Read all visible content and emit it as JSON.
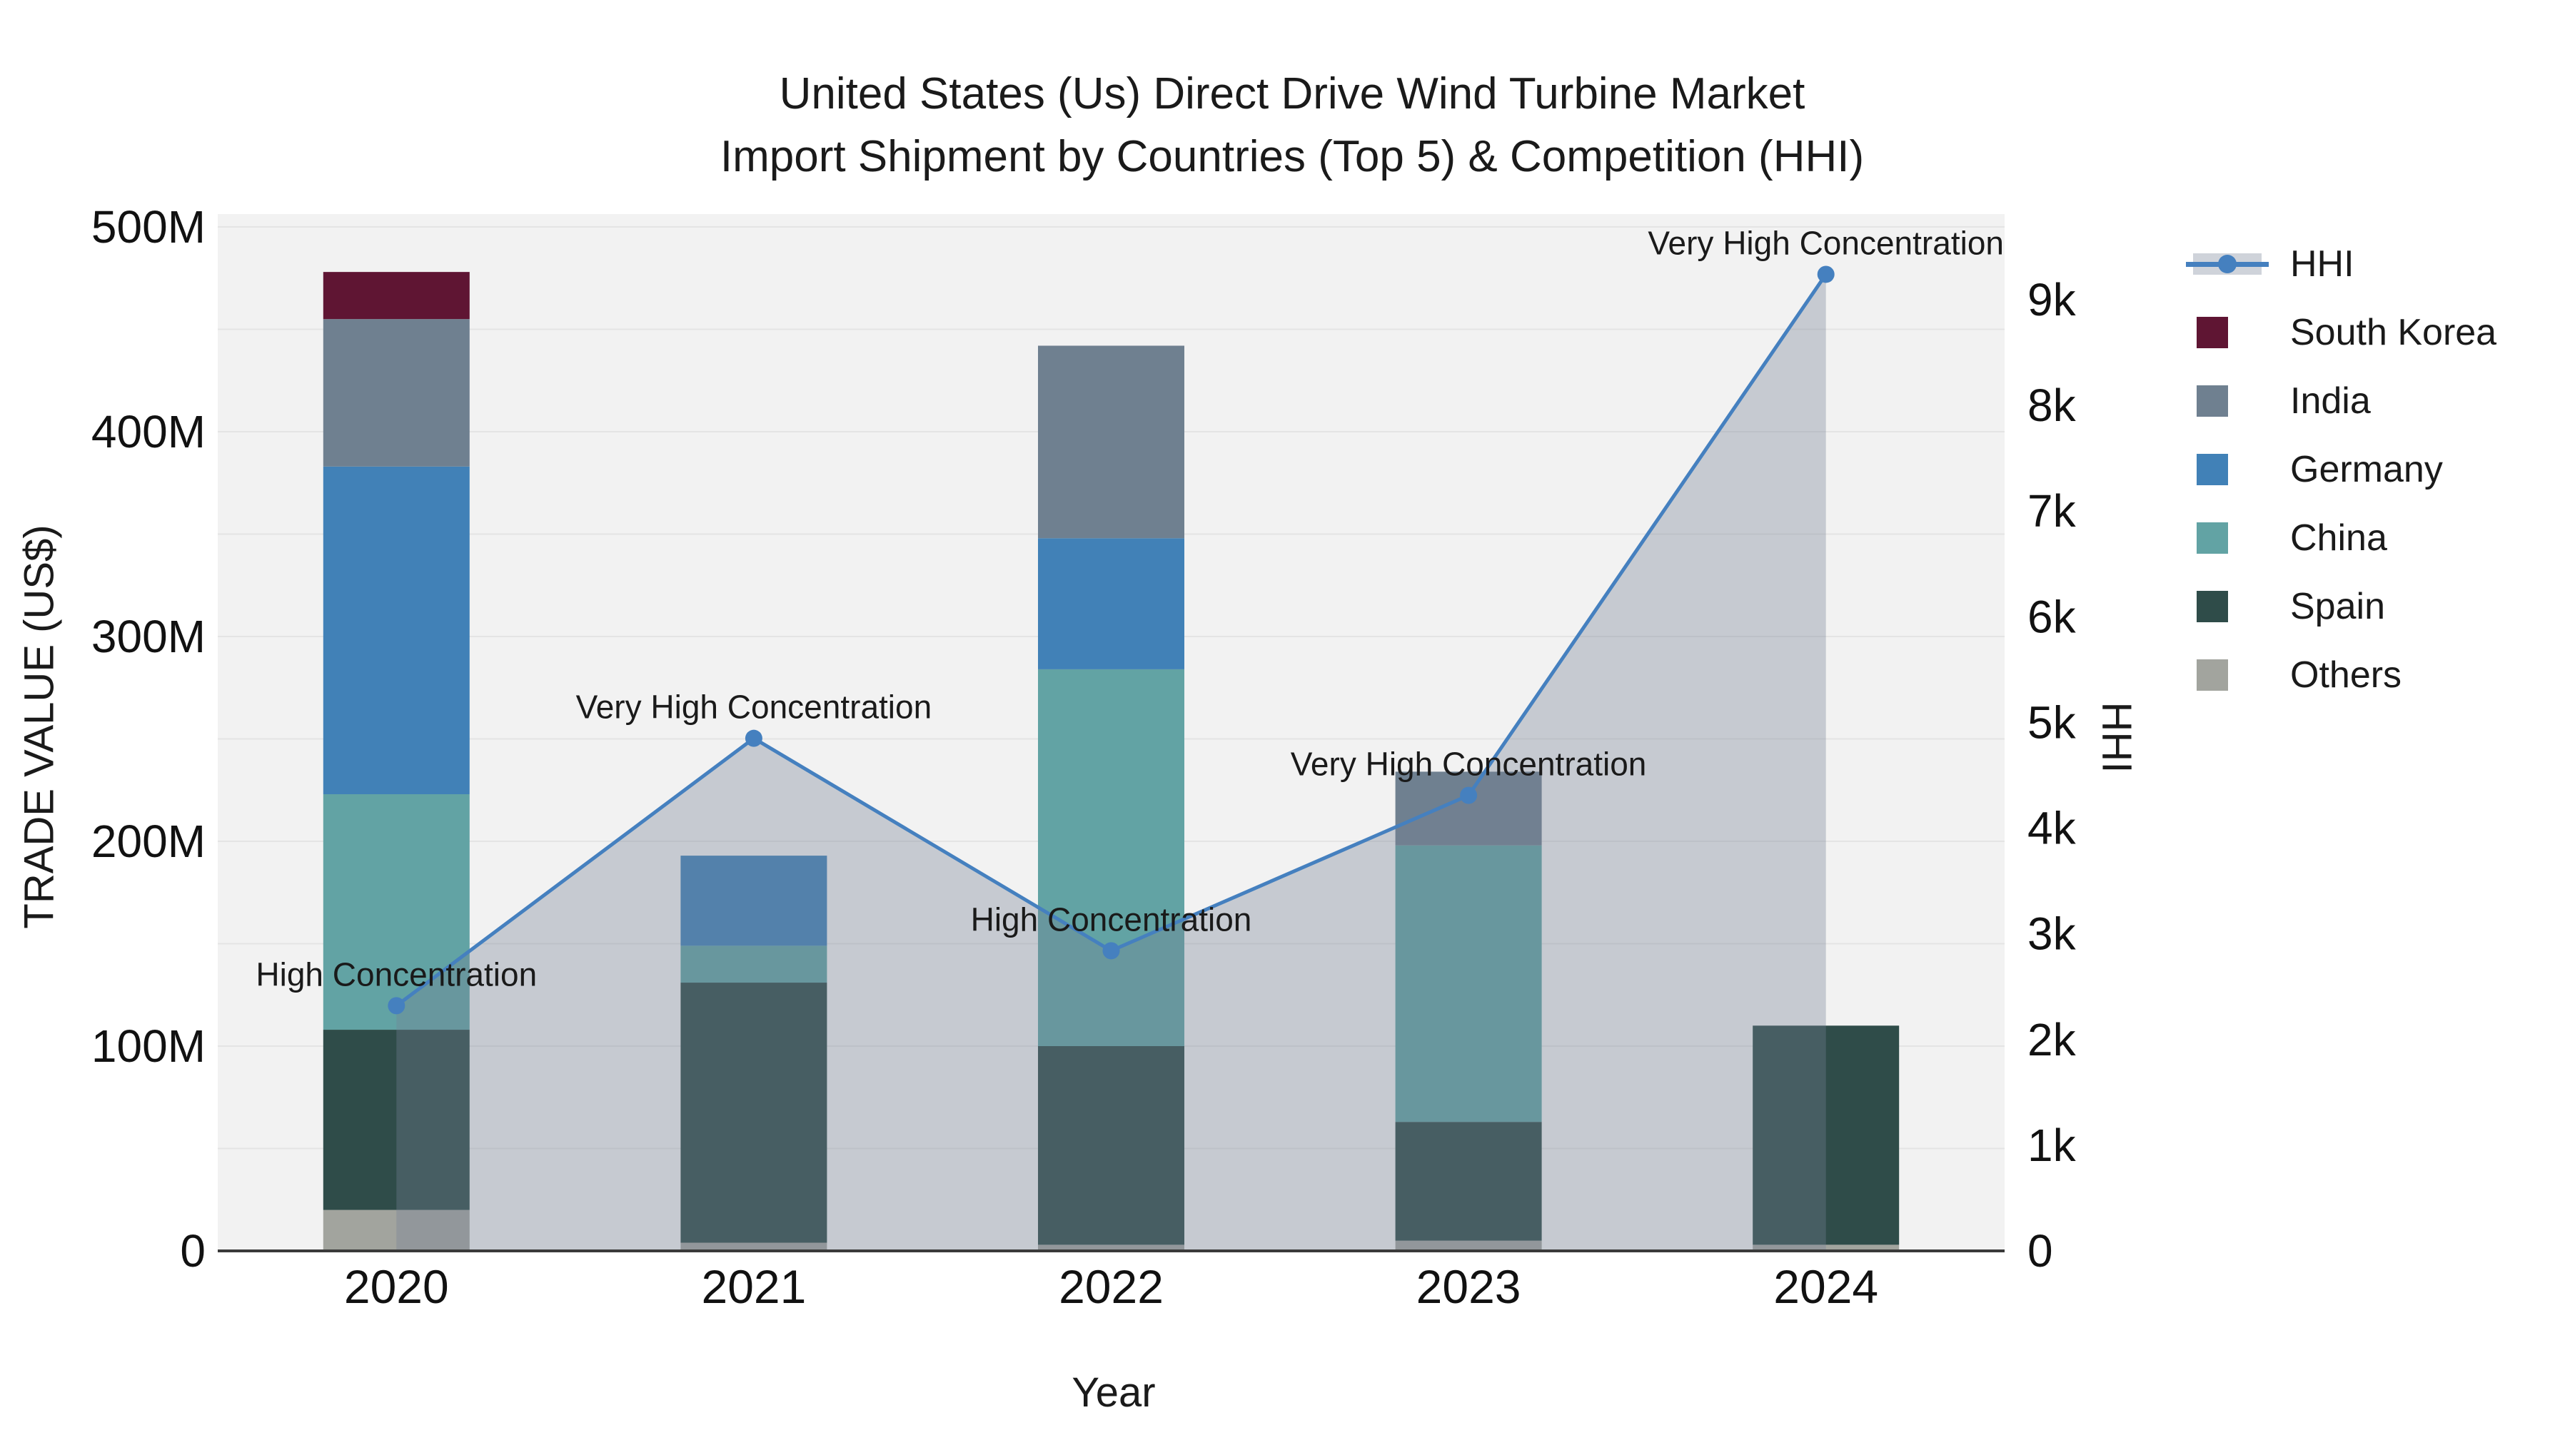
{
  "title": {
    "line1": "United States (Us) Direct Drive Wind Turbine Market",
    "line2": "Import Shipment by Countries (Top 5) & Competition (HHI)"
  },
  "axes": {
    "x": {
      "title": "Year"
    },
    "y_left": {
      "title": "TRADE VALUE (US$)",
      "tick_labels": [
        "0",
        "100M",
        "200M",
        "300M",
        "400M",
        "500M"
      ],
      "range_millions": [
        0,
        500
      ]
    },
    "y_right": {
      "title": "HHI",
      "tick_labels": [
        "0",
        "1k",
        "2k",
        "3k",
        "4k",
        "5k",
        "6k",
        "7k",
        "8k",
        "9k"
      ],
      "range": [
        0,
        9000
      ]
    }
  },
  "legend": {
    "items": [
      {
        "label": "HHI",
        "type": "line",
        "color": "#4580bf",
        "band_color": "rgba(118,130,150,0.35)"
      },
      {
        "label": "South Korea",
        "type": "square",
        "color": "#5f1533"
      },
      {
        "label": "India",
        "type": "square",
        "color": "#6f8090"
      },
      {
        "label": "Germany",
        "type": "square",
        "color": "#4181b7"
      },
      {
        "label": "China",
        "type": "square",
        "color": "#62a3a4"
      },
      {
        "label": "Spain",
        "type": "square",
        "color": "#2f4c49"
      },
      {
        "label": "Others",
        "type": "square",
        "color": "#a2a49e"
      }
    ]
  },
  "chart_data": {
    "type": "bar+line",
    "categories": [
      "2020",
      "2021",
      "2022",
      "2023",
      "2024"
    ],
    "bar_value_unit": "millions of US$",
    "stack_order_bottom_to_top": [
      "Others",
      "Spain",
      "China",
      "Germany",
      "India",
      "South Korea"
    ],
    "series": [
      {
        "name": "South Korea",
        "color": "#5f1533",
        "values_millions": [
          23,
          0,
          0,
          0,
          0
        ]
      },
      {
        "name": "India",
        "color": "#6f8090",
        "values_millions": [
          72,
          0,
          94,
          36,
          0
        ]
      },
      {
        "name": "Germany",
        "color": "#4181b7",
        "values_millions": [
          160,
          44,
          64,
          0,
          0
        ]
      },
      {
        "name": "China",
        "color": "#62a3a4",
        "values_millions": [
          115,
          18,
          184,
          135,
          0
        ]
      },
      {
        "name": "Spain",
        "color": "#2f4c49",
        "values_millions": [
          88,
          127,
          97,
          58,
          107
        ]
      },
      {
        "name": "Others",
        "color": "#a2a49e",
        "values_millions": [
          20,
          4,
          3,
          5,
          3
        ]
      }
    ],
    "hhi_line": {
      "name": "HHI",
      "values": [
        2320,
        4850,
        2840,
        4310,
        9240
      ],
      "color": "#4580bf",
      "area_fill": "rgba(118,130,150,0.35)"
    },
    "annotations": [
      {
        "category": "2020",
        "text": "High Concentration"
      },
      {
        "category": "2021",
        "text": "Very High Concentration"
      },
      {
        "category": "2022",
        "text": "High Concentration"
      },
      {
        "category": "2023",
        "text": "Very High Concentration"
      },
      {
        "category": "2024",
        "text": "Very High Concentration"
      }
    ],
    "ylim_left_millions": [
      0,
      500
    ],
    "ylim_right": [
      0,
      9000
    ],
    "grid_step_millions": 50,
    "plot_background": "#f2f2f2",
    "gridline_color": "#e4e4e4",
    "axis_line_color": "#3a3a3a",
    "legend_position": "right"
  }
}
